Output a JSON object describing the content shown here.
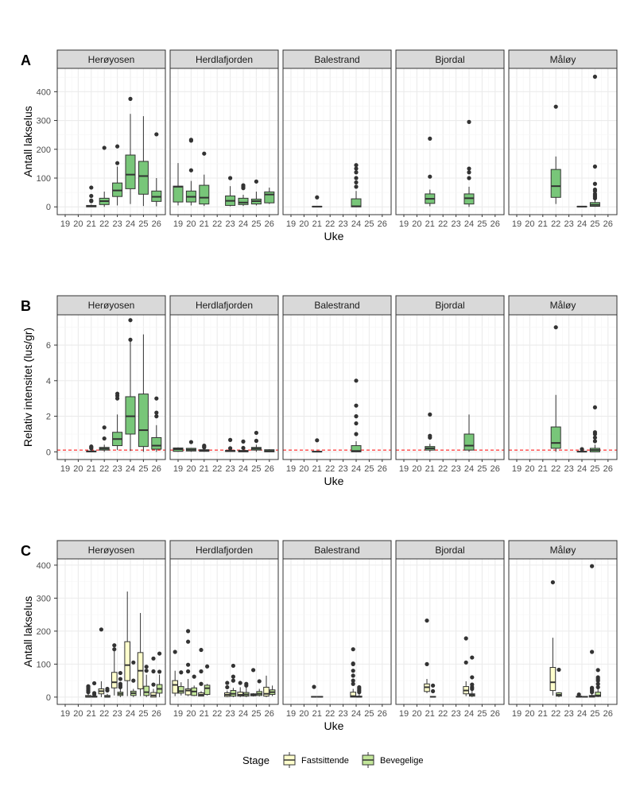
{
  "chart_data": {
    "type": "boxplot",
    "facets": [
      "Herøyosen",
      "Herdlafjorden",
      "Balestrand",
      "Bjordal",
      "Måløy"
    ],
    "weeks": [
      19,
      20,
      21,
      22,
      23,
      24,
      25,
      26
    ],
    "xlabel": "Uke",
    "legend": {
      "title": "Stage",
      "placement": "bottom",
      "entries": [
        {
          "name": "Fastsittende",
          "color": "#FFFFCC"
        },
        {
          "name": "Bevegelige",
          "color": "#C2E699"
        }
      ]
    },
    "colors": {
      "total": "#78C679",
      "Fastsittende": "#FFFFCC",
      "Bevegelige": "#C2E699",
      "reference_line": "#FF0000"
    },
    "panels": [
      {
        "tag": "A",
        "ylabel": "Antall lakselus",
        "ylim": [
          -27,
          481
        ],
        "yticks": [
          0,
          100,
          200,
          300,
          400
        ],
        "boxes": {
          "Herøyosen": [
            [
              21,
              0,
              2,
              5,
              0,
              8,
              [
                20,
                22,
                38,
                67
              ]
            ],
            [
              22,
              8,
              20,
              30,
              0,
              53,
              [
                205
              ]
            ],
            [
              23,
              36,
              57,
              83,
              5,
              140,
              [
                152,
                210
              ]
            ],
            [
              24,
              63,
              112,
              180,
              10,
              323,
              [
                375
              ]
            ],
            [
              25,
              44,
              107,
              158,
              3,
              315,
              []
            ],
            [
              26,
              19,
              35,
              55,
              2,
              100,
              [
                252
              ]
            ]
          ],
          "Herdlafjorden": [
            [
              19,
              17,
              70,
              72,
              5,
              152,
              []
            ],
            [
              20,
              17,
              35,
              55,
              5,
              90,
              [
                127,
                230,
                233
              ]
            ],
            [
              21,
              10,
              32,
              75,
              3,
              112,
              [
                185
              ]
            ],
            [
              23,
              5,
              21,
              38,
              2,
              72,
              [
                100
              ]
            ],
            [
              24,
              8,
              15,
              30,
              3,
              42,
              [
                65,
                70,
                75
              ]
            ],
            [
              25,
              10,
              20,
              27,
              5,
              53,
              [
                88
              ]
            ],
            [
              26,
              14,
              43,
              52,
              10,
              67,
              []
            ]
          ],
          "Balestrand": [
            [
              21,
              0,
              1,
              2,
              0,
              3,
              [
                33
              ]
            ],
            [
              24,
              0,
              2,
              28,
              0,
              55,
              [
                70,
                85,
                100,
                120,
                133,
                145
              ]
            ]
          ],
          "Bjordal": [
            [
              21,
              12,
              28,
              45,
              2,
              60,
              [
                105,
                237
              ]
            ],
            [
              24,
              10,
              30,
              45,
              0,
              70,
              [
                100,
                120,
                133,
                295
              ]
            ]
          ],
          "Måløy": [
            [
              22,
              33,
              72,
              130,
              10,
              175,
              [
                348
              ]
            ],
            [
              24,
              0,
              1,
              2,
              0,
              3,
              []
            ],
            [
              25,
              2,
              7,
              15,
              0,
              25,
              [
                30,
                35,
                40,
                45,
                55,
                60,
                80,
                140,
                452
              ]
            ]
          ]
        }
      },
      {
        "tag": "B",
        "ylabel": "Relativ intensitet (lus/gr)",
        "ylim": [
          -0.43,
          7.7
        ],
        "yticks": [
          0,
          2,
          4,
          6
        ],
        "reference_line": 0.1,
        "boxes": {
          "Herøyosen": [
            [
              21,
              0,
              0.02,
              0.05,
              0,
              0.1,
              [
                0.2,
                0.25,
                0.3
              ]
            ],
            [
              22,
              0.1,
              0.18,
              0.25,
              0,
              0.4,
              [
                0.75,
                1.37
              ]
            ],
            [
              23,
              0.35,
              0.72,
              1.1,
              0.1,
              2.1,
              [
                3,
                3.15,
                3.27
              ]
            ],
            [
              24,
              1.0,
              2.0,
              3.1,
              0.05,
              6.2,
              [
                6.3,
                7.4
              ]
            ],
            [
              25,
              0.3,
              1.22,
              3.25,
              0,
              6.6,
              []
            ],
            [
              26,
              0.15,
              0.35,
              0.8,
              0,
              1.5,
              [
                2.0,
                2.2,
                3.0
              ]
            ]
          ],
          "Herdlafjorden": [
            [
              19,
              0.03,
              0.15,
              0.22,
              0,
              0.25,
              []
            ],
            [
              20,
              0.05,
              0.12,
              0.2,
              0,
              0.22,
              [
                0.55
              ]
            ],
            [
              21,
              0.03,
              0.08,
              0.12,
              0,
              0.15,
              [
                0.25,
                0.3,
                0.35
              ]
            ],
            [
              23,
              0.02,
              0.05,
              0.08,
              0,
              0.1,
              [
                0.2,
                0.67
              ]
            ],
            [
              24,
              0,
              0.03,
              0.08,
              0,
              0.12,
              [
                0.22,
                0.58
              ]
            ],
            [
              25,
              0.1,
              0.18,
              0.25,
              0,
              0.4,
              [
                0.62,
                1.07
              ]
            ],
            [
              26,
              0,
              0.05,
              0.12,
              0,
              0.15,
              []
            ]
          ],
          "Balestrand": [
            [
              21,
              0,
              0.01,
              0.03,
              0,
              0.05,
              [
                0.65
              ]
            ],
            [
              24,
              0,
              0.05,
              0.35,
              0,
              0.6,
              [
                1.0,
                1.6,
                2.0,
                2.6,
                4.0
              ]
            ]
          ],
          "Bjordal": [
            [
              21,
              0.1,
              0.2,
              0.3,
              0,
              0.45,
              [
                0.8,
                0.9,
                2.1
              ]
            ],
            [
              24,
              0.1,
              0.35,
              1.0,
              0,
              2.1,
              []
            ]
          ],
          "Måløy": [
            [
              22,
              0.2,
              0.5,
              1.4,
              0,
              3.2,
              [
                7.0
              ]
            ],
            [
              24,
              0,
              0.01,
              0.03,
              0,
              0.05,
              [
                0.15
              ]
            ],
            [
              25,
              0,
              0.1,
              0.2,
              0,
              0.4,
              [
                0.6,
                0.8,
                1.0,
                1.1,
                2.5
              ]
            ]
          ]
        }
      },
      {
        "tag": "C",
        "ylabel": "Antall lakselus",
        "ylim": [
          -22,
          419
        ],
        "yticks": [
          0,
          100,
          200,
          300,
          400
        ],
        "by_stage": true,
        "boxes": {
          "Herøyosen": [
            [
              21,
              "F",
              0,
              1,
              5,
              0,
              10,
              [
                15,
                20,
                25,
                30,
                33
              ]
            ],
            [
              21,
              "B",
              0,
              1,
              3,
              0,
              5,
              [
                8,
                12,
                42
              ]
            ],
            [
              22,
              "F",
              10,
              18,
              25,
              0,
              48,
              [
                205
              ]
            ],
            [
              22,
              "B",
              0,
              1,
              5,
              0,
              10,
              [
                20,
                25
              ]
            ],
            [
              23,
              "F",
              28,
              45,
              75,
              5,
              140,
              [
                145,
                157
              ]
            ],
            [
              23,
              "B",
              5,
              10,
              15,
              0,
              25,
              [
                30,
                35,
                40,
                55,
                73
              ]
            ],
            [
              24,
              "F",
              50,
              97,
              168,
              3,
              320,
              []
            ],
            [
              24,
              "B",
              5,
              12,
              18,
              0,
              25,
              [
                50,
                105
              ]
            ],
            [
              25,
              "F",
              25,
              80,
              135,
              3,
              255,
              []
            ],
            [
              25,
              "B",
              5,
              15,
              33,
              0,
              68,
              [
                80,
                92
              ]
            ],
            [
              26,
              "F",
              0,
              5,
              14,
              0,
              25,
              [
                38,
                78,
                117
              ]
            ],
            [
              26,
              "B",
              12,
              25,
              38,
              0,
              68,
              [
                77,
                132
              ]
            ]
          ],
          "Herdlafjorden": [
            [
              19,
              "F",
              12,
              37,
              50,
              3,
              80,
              [
                137
              ]
            ],
            [
              19,
              "B",
              12,
              18,
              32,
              5,
              45,
              [
                75
              ]
            ],
            [
              20,
              "F",
              7,
              20,
              25,
              3,
              55,
              [
                78,
                98,
                168,
                200
              ]
            ],
            [
              20,
              "B",
              5,
              17,
              28,
              3,
              35,
              [
                62
              ]
            ],
            [
              21,
              "F",
              3,
              7,
              13,
              2,
              18,
              [
                40,
                78,
                143
              ]
            ],
            [
              21,
              "B",
              8,
              27,
              36,
              5,
              40,
              [
                93
              ]
            ],
            [
              23,
              "F",
              2,
              7,
              13,
              0,
              20,
              [
                30,
                43
              ]
            ],
            [
              23,
              "B",
              3,
              10,
              20,
              0,
              28,
              [
                50,
                62,
                95
              ]
            ],
            [
              24,
              "F",
              3,
              7,
              15,
              0,
              30,
              [
                43
              ]
            ],
            [
              24,
              "B",
              3,
              8,
              14,
              0,
              38,
              [
                35,
                40
              ]
            ],
            [
              25,
              "F",
              4,
              7,
              10,
              2,
              12,
              [
                82
              ]
            ],
            [
              25,
              "B",
              5,
              10,
              17,
              2,
              25,
              [
                48
              ]
            ],
            [
              26,
              "F",
              3,
              10,
              30,
              0,
              65,
              []
            ],
            [
              26,
              "B",
              8,
              15,
              22,
              3,
              35,
              []
            ]
          ],
          "Balestrand": [
            [
              21,
              "F",
              0,
              1,
              2,
              0,
              3,
              [
                31
              ]
            ],
            [
              21,
              "B",
              0,
              1,
              2,
              0,
              3,
              []
            ],
            [
              24,
              "F",
              0,
              3,
              15,
              0,
              25,
              [
                40,
                50,
                65,
                80,
                100,
                102,
                145
              ]
            ],
            [
              24,
              "B",
              0,
              1,
              3,
              0,
              10,
              [
                15,
                20,
                25,
                30
              ]
            ]
          ],
          "Bjordal": [
            [
              21,
              "F",
              17,
              30,
              40,
              12,
              55,
              [
                100,
                232
              ]
            ],
            [
              21,
              "B",
              0,
              1,
              2,
              0,
              3,
              [
                18,
                35
              ]
            ],
            [
              24,
              "F",
              10,
              20,
              32,
              3,
              48,
              [
                105,
                178
              ]
            ],
            [
              24,
              "B",
              3,
              7,
              10,
              0,
              20,
              [
                25,
                30,
                38,
                60,
                120
              ]
            ]
          ],
          "Måløy": [
            [
              22,
              "F",
              20,
              45,
              90,
              5,
              180,
              [
                348
              ]
            ],
            [
              22,
              "B",
              3,
              7,
              13,
              0,
              15,
              [
                83
              ]
            ],
            [
              24,
              "F",
              0,
              1,
              3,
              0,
              5,
              [
                8
              ]
            ],
            [
              24,
              "B",
              0,
              1,
              2,
              0,
              3,
              []
            ],
            [
              25,
              "F",
              0,
              2,
              5,
              0,
              10,
              [
                15,
                20,
                25,
                28,
                137,
                397
              ]
            ],
            [
              25,
              "B",
              2,
              5,
              15,
              0,
              25,
              [
                30,
                40,
                50,
                55,
                60,
                82
              ]
            ]
          ]
        }
      }
    ]
  }
}
